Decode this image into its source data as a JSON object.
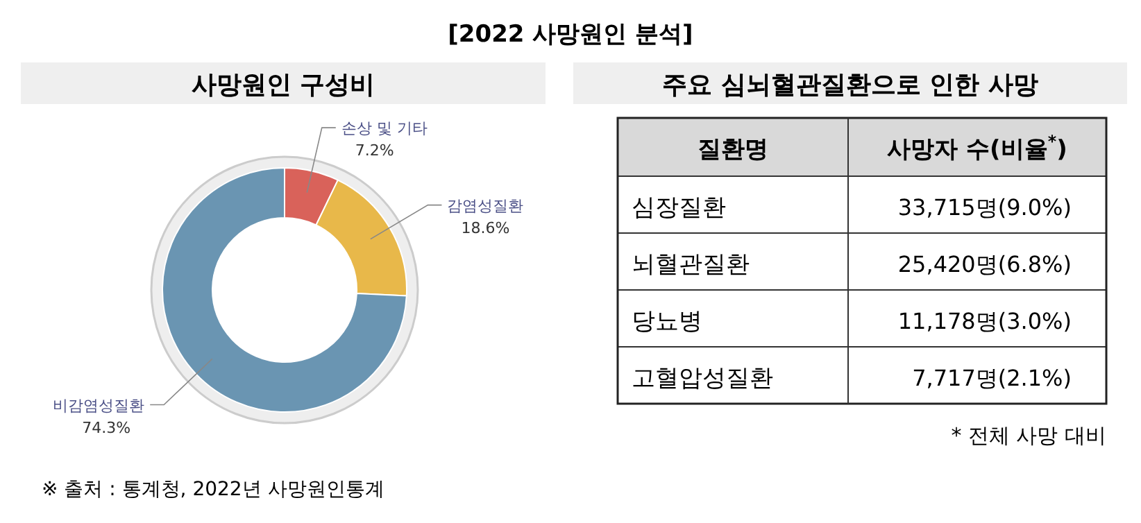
{
  "chart_data": [
    {
      "type": "donut",
      "title": "[2022 사망원인 분석]",
      "subtitle": "사망원인 구성비",
      "categories": [
        "손상 및 기타",
        "감염성질환",
        "비감염성질환"
      ],
      "values": [
        7.2,
        18.6,
        74.3
      ],
      "colors": [
        "#d9625a",
        "#e8b84a",
        "#6a95b2"
      ],
      "value_labels": [
        "7.2%",
        "18.6%",
        "74.3%"
      ],
      "legend": false,
      "annotations": [
        "※ 출처 : 통계청, 2022년 사망원인통계"
      ]
    },
    {
      "type": "other",
      "title": "주요 심뇌혈관질환으로 인한 사망",
      "categories": [
        "질환명",
        "사망자 수(비율$^{*}$)"
      ],
      "y_categories": [
        "심장질환",
        "뇌혈관질환",
        "당뇨병",
        "고혈압성질환"
      ],
      "cell_labels": [
        [
          "33,715명(9.0%)"
        ],
        [
          "25,420명(6.8%)"
        ],
        [
          "11,178명(3.0%)"
        ],
        [
          "7,717명(2.1%)"
        ]
      ],
      "annotations": [
        "* 전체 사망 대비"
      ]
    }
  ]
}
